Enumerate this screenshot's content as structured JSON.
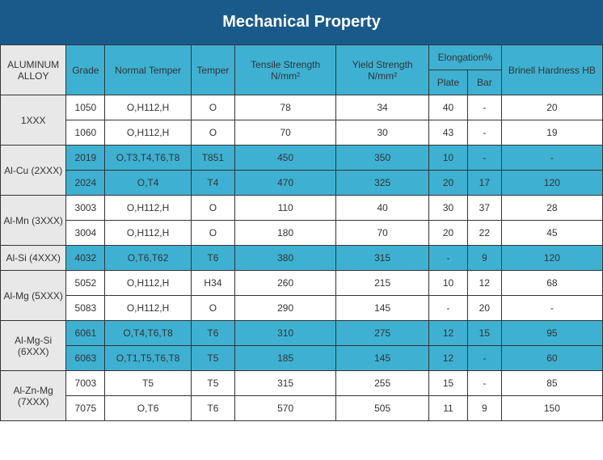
{
  "title": "Mechanical Property",
  "headers": {
    "alloy": "ALUMINUM ALLOY",
    "grade": "Grade",
    "normal_temper": "Normal Temper",
    "temper": "Temper",
    "tensile": "Tensile Strength N/mm²",
    "yield": "Yield Strength N/mm²",
    "elongation": "Elongation%",
    "plate": "Plate",
    "bar": "Bar",
    "hb": "Brinell Hardness HB"
  },
  "groups": [
    {
      "name": "1XXX",
      "class": "white",
      "rows": [
        {
          "grade": "1050",
          "ntemper": "O,H112,H",
          "temper": "O",
          "tensile": "78",
          "yield": "34",
          "plate": "40",
          "bar": "-",
          "hb": "20"
        },
        {
          "grade": "1060",
          "ntemper": "O,H112,H",
          "temper": "O",
          "tensile": "70",
          "yield": "30",
          "plate": "43",
          "bar": "-",
          "hb": "19"
        }
      ]
    },
    {
      "name": "Al-Cu (2XXX)",
      "class": "blue",
      "rows": [
        {
          "grade": "2019",
          "ntemper": "O,T3,T4,T6,T8",
          "temper": "T851",
          "tensile": "450",
          "yield": "350",
          "plate": "10",
          "bar": "-",
          "hb": "-"
        },
        {
          "grade": "2024",
          "ntemper": "O,T4",
          "temper": "T4",
          "tensile": "470",
          "yield": "325",
          "plate": "20",
          "bar": "17",
          "hb": "120"
        }
      ]
    },
    {
      "name": "Al-Mn (3XXX)",
      "class": "white",
      "rows": [
        {
          "grade": "3003",
          "ntemper": "O,H112,H",
          "temper": "O",
          "tensile": "110",
          "yield": "40",
          "plate": "30",
          "bar": "37",
          "hb": "28"
        },
        {
          "grade": "3004",
          "ntemper": "O,H112,H",
          "temper": "O",
          "tensile": "180",
          "yield": "70",
          "plate": "20",
          "bar": "22",
          "hb": "45"
        }
      ]
    },
    {
      "name": "Al-Si (4XXX)",
      "class": "blue",
      "rows": [
        {
          "grade": "4032",
          "ntemper": "O,T6,T62",
          "temper": "T6",
          "tensile": "380",
          "yield": "315",
          "plate": "-",
          "bar": "9",
          "hb": "120"
        }
      ]
    },
    {
      "name": "Al-Mg (5XXX)",
      "class": "white",
      "rows": [
        {
          "grade": "5052",
          "ntemper": "O,H112,H",
          "temper": "H34",
          "tensile": "260",
          "yield": "215",
          "plate": "10",
          "bar": "12",
          "hb": "68"
        },
        {
          "grade": "5083",
          "ntemper": "O,H112,H",
          "temper": "O",
          "tensile": "290",
          "yield": "145",
          "plate": "-",
          "bar": "20",
          "hb": "-"
        }
      ]
    },
    {
      "name": "Al-Mg-Si (6XXX)",
      "class": "blue",
      "rows": [
        {
          "grade": "6061",
          "ntemper": "O,T4,T6,T8",
          "temper": "T6",
          "tensile": "310",
          "yield": "275",
          "plate": "12",
          "bar": "15",
          "hb": "95"
        },
        {
          "grade": "6063",
          "ntemper": "O,T1,T5,T6,T8",
          "temper": "T5",
          "tensile": "185",
          "yield": "145",
          "plate": "12",
          "bar": "-",
          "hb": "60"
        }
      ]
    },
    {
      "name": "Al-Zn-Mg (7XXX)",
      "class": "white",
      "rows": [
        {
          "grade": "7003",
          "ntemper": "T5",
          "temper": "T5",
          "tensile": "315",
          "yield": "255",
          "plate": "15",
          "bar": "-",
          "hb": "85"
        },
        {
          "grade": "7075",
          "ntemper": "O,T6",
          "temper": "T6",
          "tensile": "570",
          "yield": "505",
          "plate": "11",
          "bar": "9",
          "hb": "150"
        }
      ]
    }
  ]
}
